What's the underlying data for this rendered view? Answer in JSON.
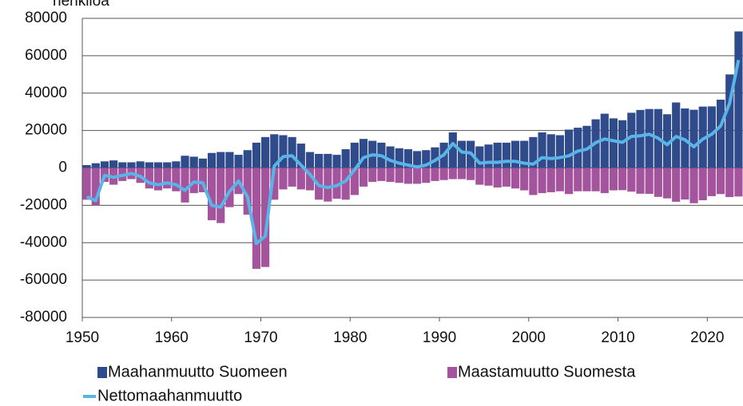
{
  "chart_data": {
    "type": "bar_line",
    "ylabel": "henkilöä",
    "x": [
      1950,
      1951,
      1952,
      1953,
      1954,
      1955,
      1956,
      1957,
      1958,
      1959,
      1960,
      1961,
      1962,
      1963,
      1964,
      1965,
      1966,
      1967,
      1968,
      1969,
      1970,
      1971,
      1972,
      1973,
      1974,
      1975,
      1976,
      1977,
      1978,
      1979,
      1980,
      1981,
      1982,
      1983,
      1984,
      1985,
      1986,
      1987,
      1988,
      1989,
      1990,
      1991,
      1992,
      1993,
      1994,
      1995,
      1996,
      1997,
      1998,
      1999,
      2000,
      2001,
      2002,
      2003,
      2004,
      2005,
      2006,
      2007,
      2008,
      2009,
      2010,
      2011,
      2012,
      2013,
      2014,
      2015,
      2016,
      2017,
      2018,
      2019,
      2020,
      2021,
      2022,
      2023
    ],
    "series": [
      {
        "name": "Maahanmuutto Suomeen",
        "color": "#2f4b8c",
        "kind": "bar",
        "values": [
          1500,
          2500,
          3500,
          4000,
          3000,
          3000,
          3500,
          3000,
          3000,
          3000,
          3500,
          6500,
          6000,
          5000,
          8000,
          8500,
          8500,
          7000,
          9500,
          13500,
          16500,
          18000,
          17500,
          16500,
          13000,
          8500,
          7500,
          7500,
          7000,
          10000,
          13500,
          15500,
          14500,
          13500,
          11500,
          10500,
          10000,
          9000,
          9500,
          11000,
          13500,
          19000,
          14500,
          14500,
          11500,
          12500,
          13500,
          13500,
          14500,
          14500,
          16500,
          19000,
          18000,
          17500,
          20500,
          21500,
          22500,
          26000,
          29000,
          26500,
          25500,
          29500,
          31000,
          31500,
          31500,
          28700,
          35000,
          31800,
          31100,
          32800,
          32900,
          36500,
          50000,
          73000
        ]
      },
      {
        "name": "Maastamuutto Suomesta",
        "color": "#a3549c",
        "kind": "bar",
        "values": [
          -17000,
          -20000,
          -7500,
          -9000,
          -7000,
          -6000,
          -8000,
          -11000,
          -12000,
          -11000,
          -12500,
          -18500,
          -13500,
          -13000,
          -28000,
          -29500,
          -21000,
          -14000,
          -25000,
          -54000,
          -53000,
          -17000,
          -11500,
          -10000,
          -11500,
          -12000,
          -17000,
          -18000,
          -16500,
          -17000,
          -14500,
          -10000,
          -7500,
          -7000,
          -7500,
          -8000,
          -8500,
          -8500,
          -8000,
          -7000,
          -6500,
          -6000,
          -6000,
          -6500,
          -9000,
          -9500,
          -10500,
          -10000,
          -11000,
          -12000,
          -14500,
          -13500,
          -13000,
          -12500,
          -14000,
          -12500,
          -12500,
          -12500,
          -13500,
          -12000,
          -11900,
          -12700,
          -13800,
          -13900,
          -15500,
          -16300,
          -18100,
          -16900,
          -18900,
          -17300,
          -15100,
          -14000,
          -15600,
          -15300
        ]
      },
      {
        "name": "Nettomaahanmuutto",
        "color": "#59b4e8",
        "kind": "line",
        "values": [
          -15500,
          -17500,
          -4000,
          -5000,
          -4000,
          -3000,
          -4500,
          -8000,
          -9000,
          -8000,
          -9000,
          -12000,
          -7500,
          -8000,
          -20000,
          -21000,
          -12500,
          -7000,
          -15500,
          -40500,
          -36500,
          1000,
          6000,
          6500,
          1500,
          -3500,
          -9500,
          -10500,
          -9500,
          -7000,
          -1000,
          5500,
          7000,
          6500,
          4000,
          2500,
          1500,
          500,
          1500,
          4000,
          7000,
          13000,
          8500,
          8000,
          2500,
          3000,
          3000,
          3500,
          3500,
          2500,
          2000,
          5500,
          5000,
          5500,
          6500,
          9000,
          10000,
          13500,
          15500,
          14500,
          13700,
          16800,
          17200,
          18000,
          15900,
          12400,
          16800,
          15000,
          11300,
          15400,
          18000,
          22500,
          34500,
          57700
        ]
      }
    ],
    "xlim": [
      1950,
      2024
    ],
    "xticks": [
      1950,
      1960,
      1970,
      1980,
      1990,
      2000,
      2010,
      2020
    ],
    "ylim": [
      -80000,
      80000
    ],
    "yticks": [
      -80000,
      -60000,
      -40000,
      -20000,
      0,
      20000,
      40000,
      60000,
      80000
    ],
    "grid": true
  }
}
